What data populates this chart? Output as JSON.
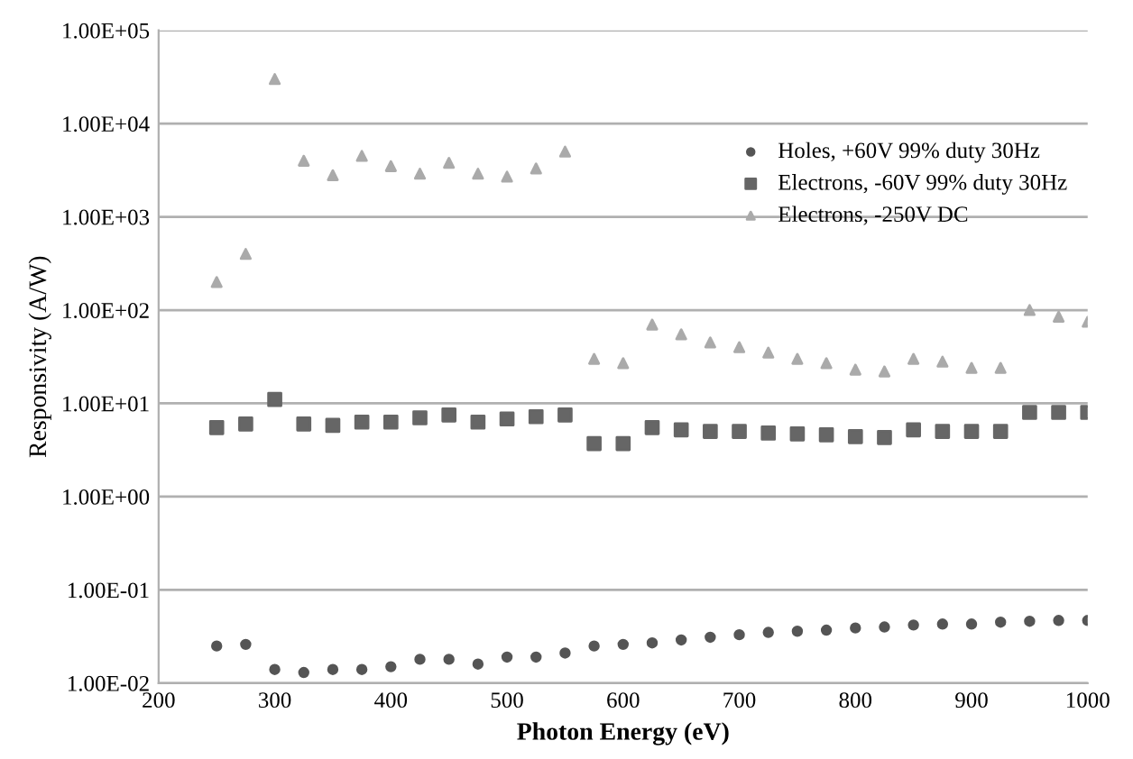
{
  "chart_data": {
    "type": "scatter",
    "xlabel": "Photon Energy (eV)",
    "ylabel": "Responsivity (A/W)",
    "x": [
      250,
      275,
      300,
      325,
      350,
      375,
      400,
      425,
      450,
      475,
      500,
      525,
      550,
      575,
      600,
      625,
      650,
      675,
      700,
      725,
      750,
      775,
      800,
      825,
      850,
      875,
      900,
      925,
      950,
      975,
      1000
    ],
    "series": [
      {
        "name": "Holes, +60V 99% duty 30Hz",
        "color": "#555555",
        "marker": "circle",
        "values": [
          0.025,
          0.026,
          0.014,
          0.013,
          0.014,
          0.014,
          0.015,
          0.018,
          0.018,
          0.016,
          0.019,
          0.019,
          0.021,
          0.025,
          0.026,
          0.027,
          0.029,
          0.031,
          0.033,
          0.035,
          0.036,
          0.037,
          0.039,
          0.04,
          0.042,
          0.043,
          0.043,
          0.045,
          0.046,
          0.047,
          0.047
        ]
      },
      {
        "name": "Electrons, -60V 99% duty 30Hz",
        "color": "#666666",
        "marker": "square",
        "values": [
          5.5,
          6,
          11,
          6,
          5.8,
          6.3,
          6.3,
          7,
          7.5,
          6.3,
          6.8,
          7.2,
          7.5,
          3.7,
          3.7,
          5.5,
          5.2,
          5,
          5,
          4.8,
          4.7,
          4.6,
          4.4,
          4.3,
          5.2,
          5,
          5,
          5,
          8,
          8,
          8
        ]
      },
      {
        "name": "Electrons, -250V DC",
        "color": "#aaaaaa",
        "marker": "triangle",
        "values": [
          200,
          400,
          30000,
          4000,
          2800,
          4500,
          3500,
          2900,
          3800,
          2900,
          2700,
          3300,
          5000,
          30,
          27,
          70,
          55,
          45,
          40,
          35,
          30,
          27,
          23,
          22,
          30,
          28,
          24,
          24,
          100,
          85,
          75
        ]
      }
    ],
    "log": "y",
    "xlim": [
      200,
      1000
    ],
    "xticks": [
      200,
      300,
      400,
      500,
      600,
      700,
      800,
      900,
      1000
    ],
    "ylim": [
      0.01,
      100000
    ],
    "yticks": [
      {
        "value": 0.01,
        "label": "1.00E-02"
      },
      {
        "value": 0.1,
        "label": "1.00E-01"
      },
      {
        "value": 1,
        "label": "1.00E+00"
      },
      {
        "value": 10,
        "label": "1.00E+01"
      },
      {
        "value": 100,
        "label": "1.00E+02"
      },
      {
        "value": 1000,
        "label": "1.00E+03"
      },
      {
        "value": 10000,
        "label": "1.00E+04"
      },
      {
        "value": 100000,
        "label": "1.00E+05"
      }
    ],
    "grid": "y",
    "legend": "top right"
  }
}
